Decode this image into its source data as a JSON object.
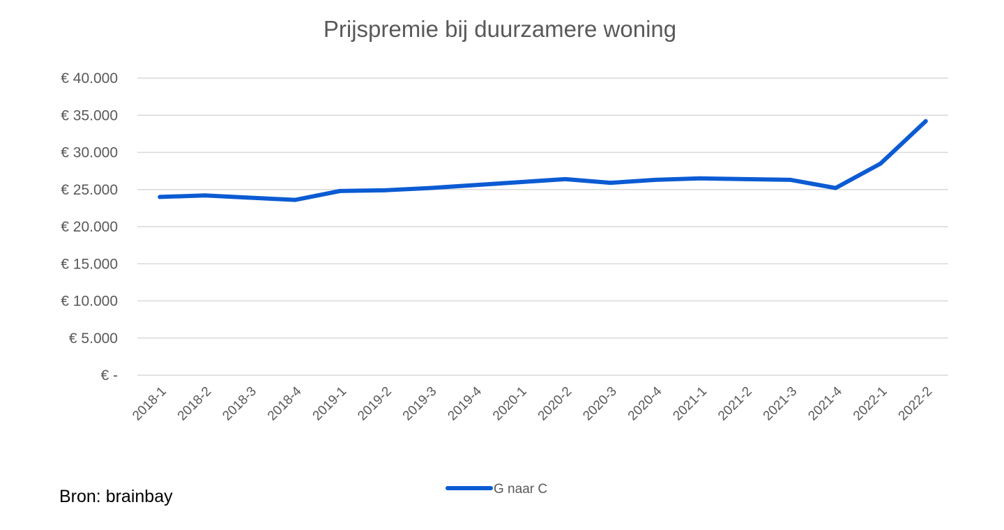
{
  "chart_data": {
    "type": "line",
    "title": "Prijspremie bij duurzamere woning",
    "xlabel": "",
    "ylabel": "",
    "categories": [
      "2018-1",
      "2018-2",
      "2018-3",
      "2018-4",
      "2019-1",
      "2019-2",
      "2019-3",
      "2019-4",
      "2020-1",
      "2020-2",
      "2020-3",
      "2020-4",
      "2021-1",
      "2021-2",
      "2021-3",
      "2021-4",
      "2022-1",
      "2022-2"
    ],
    "series": [
      {
        "name": "G naar C",
        "color": "#0b5bd3",
        "values": [
          24000,
          24200,
          23900,
          23600,
          24800,
          24900,
          25200,
          25600,
          26000,
          26400,
          25900,
          26300,
          26500,
          26400,
          26300,
          25200,
          28500,
          34200
        ]
      }
    ],
    "ylim": [
      0,
      40000
    ],
    "yticks": [
      0,
      5000,
      10000,
      15000,
      20000,
      25000,
      30000,
      35000,
      40000
    ],
    "ytick_labels": [
      "€ -",
      "€ 5.000",
      "€ 10.000",
      "€ 15.000",
      "€ 20.000",
      "€ 25.000",
      "€ 30.000",
      "€ 35.000",
      "€ 40.000"
    ],
    "grid": true,
    "legend_position": "bottom",
    "gridline_color": "#d9d9d9"
  },
  "source_note": "Bron: brainbay"
}
